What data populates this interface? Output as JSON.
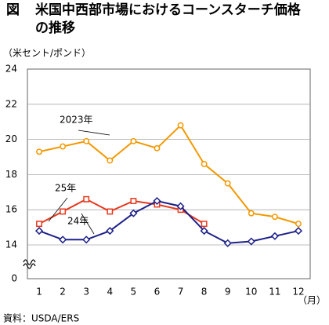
{
  "chart_data": {
    "type": "line",
    "figure_label": "図",
    "title": "米国中西部市場におけるコーンスターチ価格の推移",
    "y_axis_label": "（米セント/ポンド）",
    "x_axis_label": "（月）",
    "source": "資料：USDA/ERS",
    "categories": [
      "1",
      "2",
      "3",
      "4",
      "5",
      "6",
      "7",
      "8",
      "9",
      "10",
      "11",
      "12"
    ],
    "series": [
      {
        "name": "2023年",
        "color": "#f39800",
        "marker": "circle",
        "values": [
          19.3,
          19.6,
          19.9,
          18.8,
          19.9,
          19.5,
          20.8,
          18.6,
          17.5,
          15.8,
          15.6,
          15.2
        ]
      },
      {
        "name": "25年",
        "color": "#e6391e",
        "marker": "square",
        "values": [
          15.2,
          15.9,
          16.6,
          15.9,
          16.5,
          16.3,
          16.0,
          15.2,
          null,
          null,
          null,
          null
        ]
      },
      {
        "name": "24年",
        "color": "#1d2088",
        "marker": "diamond",
        "values": [
          14.8,
          14.3,
          14.3,
          14.8,
          15.8,
          16.5,
          16.2,
          14.8,
          14.1,
          14.2,
          14.5,
          14.8
        ]
      }
    ],
    "ylim": [
      14,
      24
    ],
    "yticks": [
      0,
      14,
      16,
      18,
      20,
      22,
      24
    ],
    "axis_break": true,
    "grid": true
  }
}
